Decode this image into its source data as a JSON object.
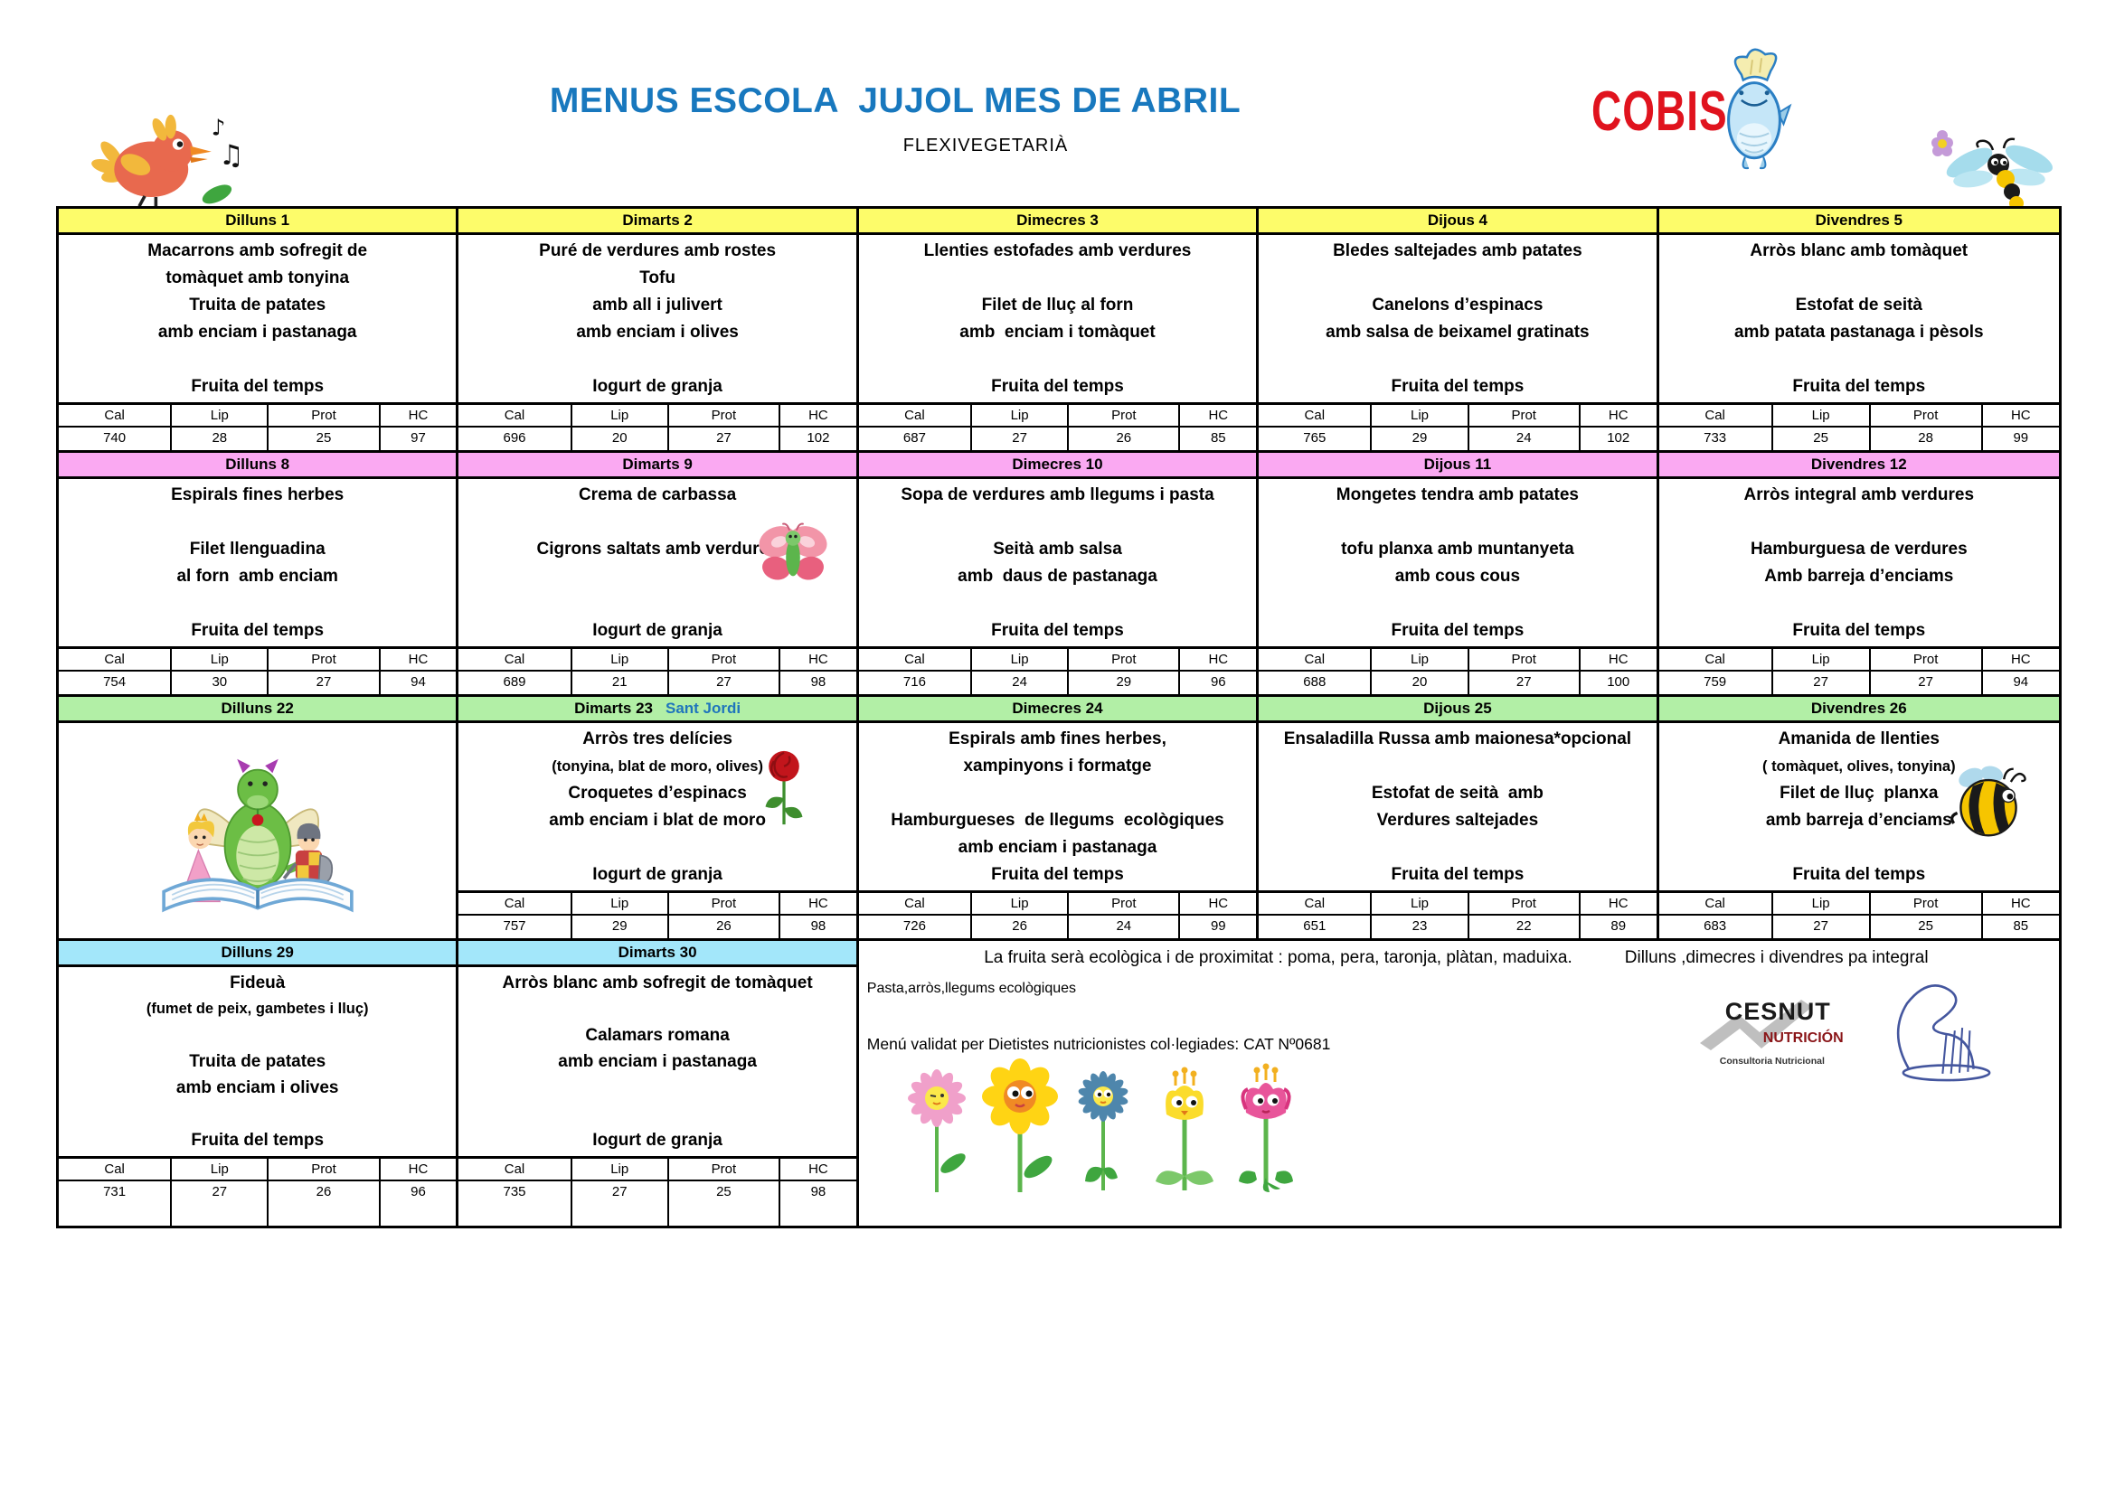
{
  "page": {
    "title": "MENUS ESCOLA  JUJOL MES DE ABRIL",
    "subtitle": "FLEXIVEGETARIÀ"
  },
  "brand": {
    "name": "COBISA",
    "color": "#E0131E"
  },
  "colors": {
    "title_blue": "#1878BE",
    "sant_jordi_blue": "#1F75BC",
    "week1_yellow": "#FDFC6A",
    "week2_pink": "#FAA9F2",
    "week3_green": "#B2EFA6",
    "week4_cyan": "#A3E7FA"
  },
  "header_mascots": [
    "bird-singing-icon",
    "fish-chef-mascot-icon",
    "dragonfly-icon"
  ],
  "nutrition_labels": [
    "Cal",
    "Lip",
    "Prot",
    "HC"
  ],
  "weeks": [
    {
      "theme": "#FDFC6A",
      "days": [
        {
          "label": "Dilluns 1",
          "lines": [
            "Macarrons amb sofregit de",
            "tomàquet amb tonyina",
            "Truita de patates",
            "amb enciam i pastanaga",
            "",
            "Fruita del temps"
          ],
          "nutrition": [
            "740",
            "28",
            "25",
            "97"
          ]
        },
        {
          "label": "Dimarts 2",
          "lines": [
            "Puré de verdures amb rostes",
            "Tofu",
            "amb all i julivert",
            "amb enciam i olives",
            "",
            "Iogurt de granja"
          ],
          "nutrition": [
            "696",
            "20",
            "27",
            "102"
          ]
        },
        {
          "label": "Dimecres 3",
          "lines": [
            "Llenties estofades amb verdures",
            "",
            "Filet de lluç al forn",
            "amb  enciam i tomàquet",
            "",
            "Fruita del temps"
          ],
          "nutrition": [
            "687",
            "27",
            "26",
            "85"
          ]
        },
        {
          "label": "Dijous 4",
          "lines": [
            "Bledes saltejades amb patates",
            "",
            "Canelons d’espinacs",
            "amb salsa de beixamel gratinats",
            "",
            "Fruita del temps"
          ],
          "nutrition": [
            "765",
            "29",
            "24",
            "102"
          ]
        },
        {
          "label": "Divendres 5",
          "lines": [
            "Arròs blanc amb tomàquet",
            "",
            "Estofat de seità",
            "amb patata pastanaga i pèsols",
            "",
            "Fruita del temps"
          ],
          "nutrition": [
            "733",
            "25",
            "28",
            "99"
          ]
        }
      ]
    },
    {
      "theme": "#FAA9F2",
      "days": [
        {
          "label": "Dilluns 8",
          "lines": [
            "Espirals fines herbes",
            "",
            "Filet llenguadina",
            "al forn  amb enciam",
            "",
            "Fruita del temps"
          ],
          "nutrition": [
            "754",
            "30",
            "27",
            "94"
          ]
        },
        {
          "label": "Dimarts 9",
          "icon": "butterfly",
          "lines": [
            "Crema de carbassa",
            "",
            "Cigrons saltats amb verdures",
            "",
            "",
            "Iogurt de granja"
          ],
          "nutrition": [
            "689",
            "21",
            "27",
            "98"
          ]
        },
        {
          "label": "Dimecres 10",
          "lines": [
            "Sopa de verdures amb llegums i pasta",
            "",
            "Seità amb salsa",
            "amb  daus de pastanaga",
            "",
            "Fruita del temps"
          ],
          "nutrition": [
            "716",
            "24",
            "29",
            "96"
          ]
        },
        {
          "label": "Dijous 11",
          "lines": [
            "Mongetes tendra amb patates",
            "",
            "tofu planxa amb muntanyeta",
            "amb cous cous",
            "",
            "Fruita del temps"
          ],
          "nutrition": [
            "688",
            "20",
            "27",
            "100"
          ]
        },
        {
          "label": "Divendres 12",
          "lines": [
            "Arròs integral amb verdures",
            "",
            "Hamburguesa de verdures",
            "Amb barreja d’enciams",
            "",
            "Fruita del temps"
          ],
          "nutrition": [
            "759",
            "27",
            "27",
            "94"
          ]
        }
      ]
    },
    {
      "theme": "#B2EFA6",
      "days": [
        {
          "label": "Dilluns 22",
          "image": "sant-jordi",
          "lines": [],
          "nutrition": null
        },
        {
          "label": "Dimarts 23",
          "label_suffix": "Sant Jordi",
          "icon": "rose",
          "lines": [
            "Arròs tres delícies",
            "(tonyina, blat de moro, olives)",
            "Croquetes d’espinacs",
            "amb enciam i blat de moro",
            "",
            "Iogurt de granja"
          ],
          "nutrition": [
            "757",
            "29",
            "26",
            "98"
          ]
        },
        {
          "label": "Dimecres 24",
          "lines": [
            "Espirals amb fines herbes,",
            "xampinyons i formatge",
            "",
            "Hamburgueses  de llegums  ecològiques",
            "amb enciam i pastanaga",
            "Fruita del temps"
          ],
          "nutrition": [
            "726",
            "26",
            "24",
            "99"
          ]
        },
        {
          "label": "Dijous 25",
          "lines": [
            "Ensaladilla Russa amb maionesa*opcional",
            "",
            "Estofat de seità  amb",
            "Verdures saltejades",
            "",
            "Fruita del temps"
          ],
          "nutrition": [
            "651",
            "23",
            "22",
            "89"
          ]
        },
        {
          "label": "Divendres 26",
          "icon": "bee",
          "lines": [
            "Amanida de llenties",
            "( tomàquet, olives, tonyina)",
            "Filet de lluç  planxa",
            "amb barreja d’enciams",
            "",
            "Fruita del temps"
          ],
          "nutrition": [
            "683",
            "27",
            "25",
            "85"
          ]
        }
      ]
    },
    {
      "theme": "#A3E7FA",
      "days": [
        {
          "label": "Dilluns 29",
          "lines": [
            "Fideuà",
            "(fumet de peix, gambetes i lluç)",
            "",
            "Truita de patates",
            "amb enciam i olives",
            "",
            "Fruita del temps"
          ],
          "nutrition": [
            "731",
            "27",
            "26",
            "96"
          ]
        },
        {
          "label": "Dimarts 30",
          "lines": [
            "Arròs blanc amb sofregit de tomàquet",
            "",
            "Calamars romana",
            "amb enciam i pastanaga",
            "",
            "",
            "Iogurt de granja"
          ],
          "nutrition": [
            "735",
            "27",
            "25",
            "98"
          ]
        }
      ]
    }
  ],
  "notes": {
    "line1": "La fruita serà ecològica i de proximitat : poma, pera, taronja, plàtan, maduixa.",
    "line1b": "Dilluns ,dimecres i divendres pa integral",
    "line2": "Pasta,arròs,llegums ecològiques",
    "line3": "Menú validat per Dietistes nutricionistes col·legiades: CAT Nº0681",
    "cesnut": {
      "name": "CESNUT",
      "sub": "NUTRICIÓN",
      "tagline": "Consultoria Nutricional"
    }
  }
}
